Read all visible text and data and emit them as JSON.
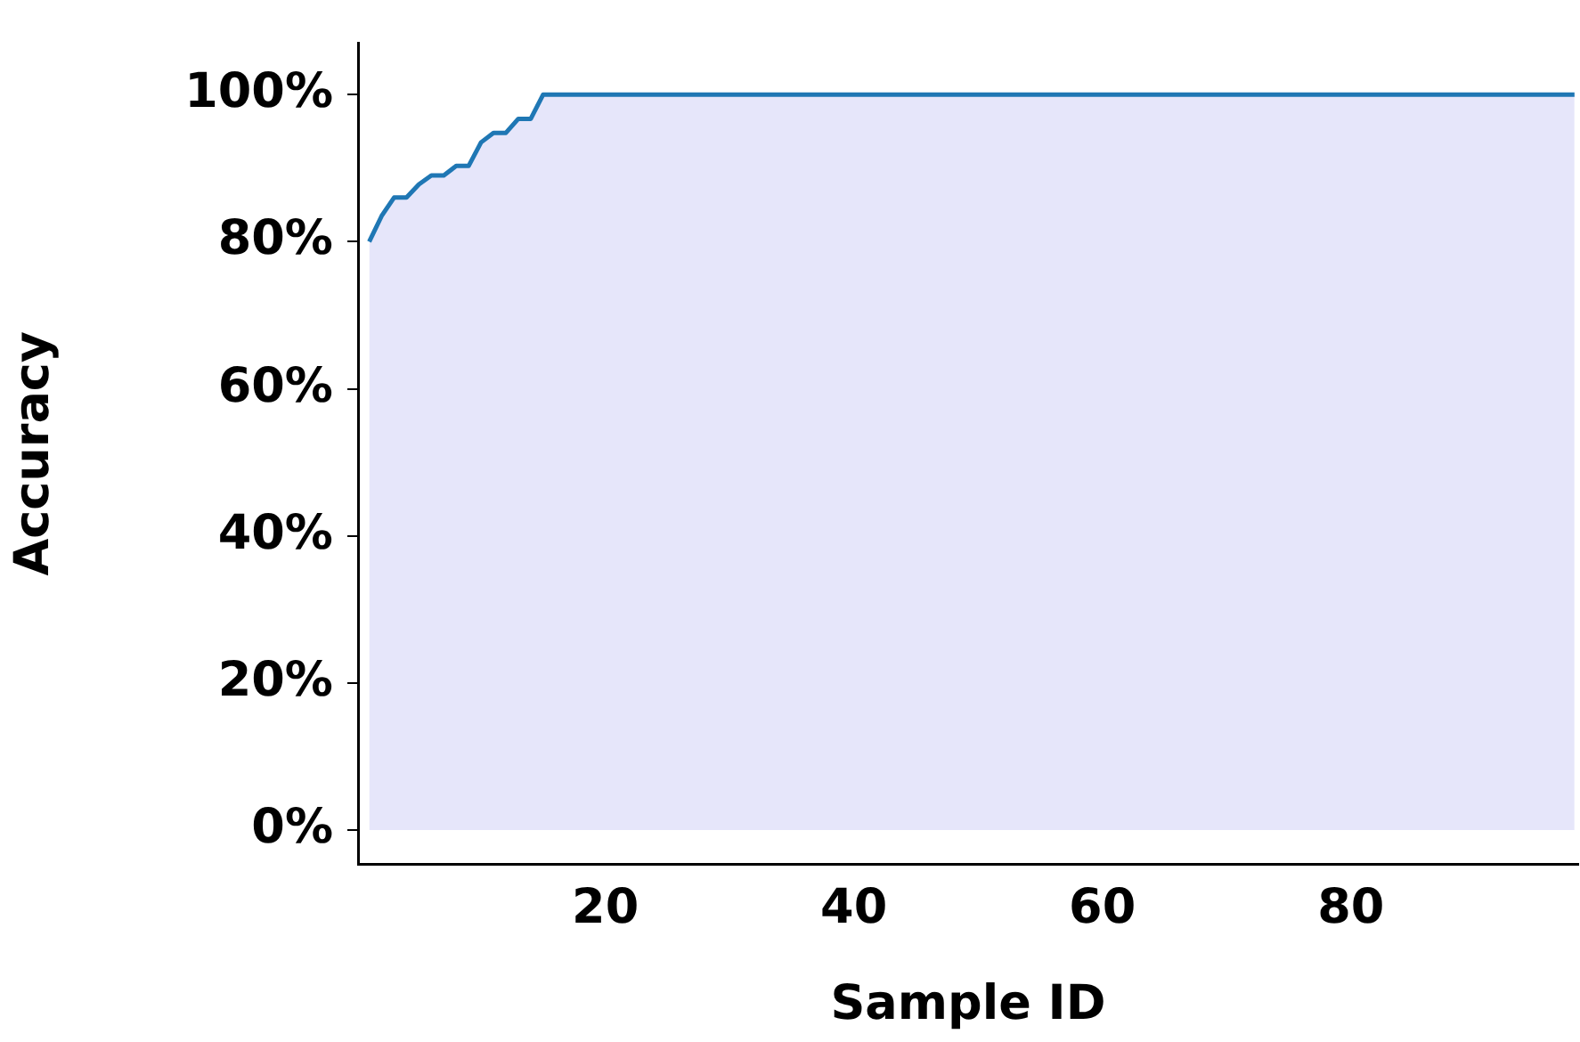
{
  "chart_data": {
    "type": "area",
    "xlabel": "Sample ID",
    "ylabel": "Accuracy",
    "x": [
      1,
      2,
      3,
      4,
      5,
      6,
      7,
      8,
      9,
      10,
      11,
      12,
      13,
      14,
      15,
      98
    ],
    "series": [
      {
        "color": "#1f77b4",
        "values": [
          80,
          83.5,
          86,
          86,
          87.8,
          89,
          89,
          90.3,
          90.3,
          93.5,
          94.8,
          94.8,
          96.7,
          96.7,
          100,
          100
        ]
      }
    ],
    "xlim": [
      0.1,
      98.3
    ],
    "xticks": [
      20,
      40,
      60,
      80
    ],
    "ylim": [
      -4.6,
      107
    ],
    "yticks": [
      {
        "value": 0,
        "label": "0%"
      },
      {
        "value": 20,
        "label": "20%"
      },
      {
        "value": 40,
        "label": "40%"
      },
      {
        "value": 60,
        "label": "60%"
      },
      {
        "value": 80,
        "label": "80%"
      },
      {
        "value": 100,
        "label": "100%"
      }
    ],
    "grid": false,
    "legend": false
  }
}
